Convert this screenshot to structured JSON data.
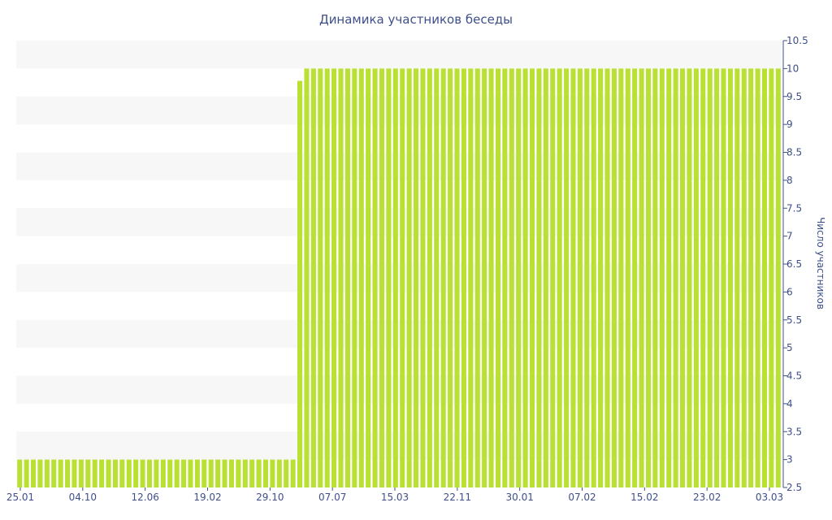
{
  "chart_data": {
    "type": "bar",
    "title": "Динамика участников беседы",
    "xlabel": "",
    "ylabel": "Число участников",
    "ylim": [
      2.5,
      10.5
    ],
    "y_ticks": [
      2.5,
      3,
      3.5,
      4,
      4.5,
      5,
      5.5,
      6,
      6.5,
      7,
      7.5,
      8,
      8.5,
      9,
      9.5,
      10,
      10.5
    ],
    "y_axis_side": "right",
    "x_tick_labels": [
      "25.01",
      "04.10",
      "12.06",
      "19.02",
      "29.10",
      "07.07",
      "15.03",
      "22.11",
      "30.01",
      "07.02",
      "15.02",
      "23.02",
      "03.03"
    ],
    "bar_color": "#b9e033",
    "band_color": "#f7f7f7",
    "text_color": "#3f4f8a",
    "grid": "alternating horizontal bands",
    "values": [
      3,
      3,
      3,
      3,
      3,
      3,
      3,
      3,
      3,
      3,
      3,
      3,
      3,
      3,
      3,
      3,
      3,
      3,
      3,
      3,
      3,
      3,
      3,
      3,
      3,
      3,
      3,
      3,
      3,
      3,
      3,
      3,
      3,
      3,
      3,
      3,
      3,
      3,
      3,
      3,
      3,
      9.78,
      10,
      10,
      10,
      10,
      10,
      10,
      10,
      10,
      10,
      10,
      10,
      10,
      10,
      10,
      10,
      10,
      10,
      10,
      10,
      10,
      10,
      10,
      10,
      10,
      10,
      10,
      10,
      10,
      10,
      10,
      10,
      10,
      10,
      10,
      10,
      10,
      10,
      10,
      10,
      10,
      10,
      10,
      10,
      10,
      10,
      10,
      10,
      10,
      10,
      10,
      10,
      10,
      10,
      10,
      10,
      10,
      10,
      10,
      10,
      10,
      10,
      10,
      10,
      10,
      10,
      10,
      10,
      10,
      10,
      10
    ]
  }
}
